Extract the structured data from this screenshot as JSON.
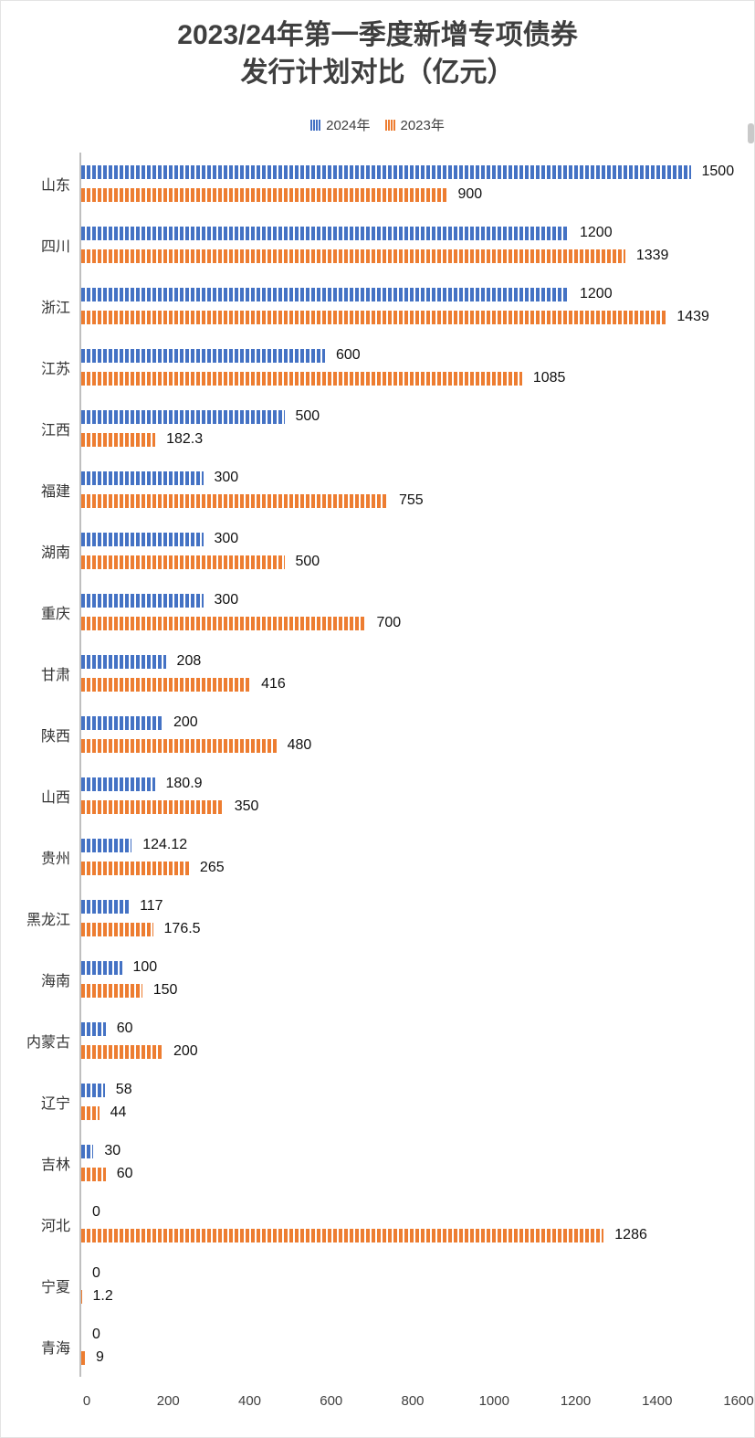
{
  "title": {
    "line1": "2023/24年第一季度新增专项债券",
    "line2": "发行计划对比（亿元）"
  },
  "legend": [
    {
      "label": "2024年",
      "color": "#4472C4"
    },
    {
      "label": "2023年",
      "color": "#ED7D31"
    }
  ],
  "chart_data": {
    "type": "bar",
    "orientation": "horizontal",
    "title": "2023/24年第一季度新增专项债券发行计划对比（亿元）",
    "categories": [
      "山东",
      "四川",
      "浙江",
      "江苏",
      "江西",
      "福建",
      "湖南",
      "重庆",
      "甘肃",
      "陕西",
      "山西",
      "贵州",
      "黑龙江",
      "海南",
      "内蒙古",
      "辽宁",
      "吉林",
      "河北",
      "宁夏",
      "青海"
    ],
    "series": [
      {
        "name": "2024年",
        "color": "#4472C4",
        "values": [
          1500,
          1200,
          1200,
          600,
          500,
          300,
          300,
          300,
          208,
          200,
          180.9,
          124.12,
          117,
          100,
          60,
          58,
          30,
          0,
          0,
          0
        ]
      },
      {
        "name": "2023年",
        "color": "#ED7D31",
        "values": [
          900,
          1339,
          1439,
          1085,
          182.3,
          755,
          500,
          700,
          416,
          480,
          350,
          265,
          176.5,
          150,
          200,
          44,
          60,
          1286,
          1.2,
          9
        ]
      }
    ],
    "xlim": [
      0,
      1600
    ],
    "xticks": [
      0,
      200,
      400,
      600,
      800,
      1000,
      1200,
      1400,
      1600
    ],
    "value_labels": true,
    "legend_position": "top",
    "grid": false
  }
}
